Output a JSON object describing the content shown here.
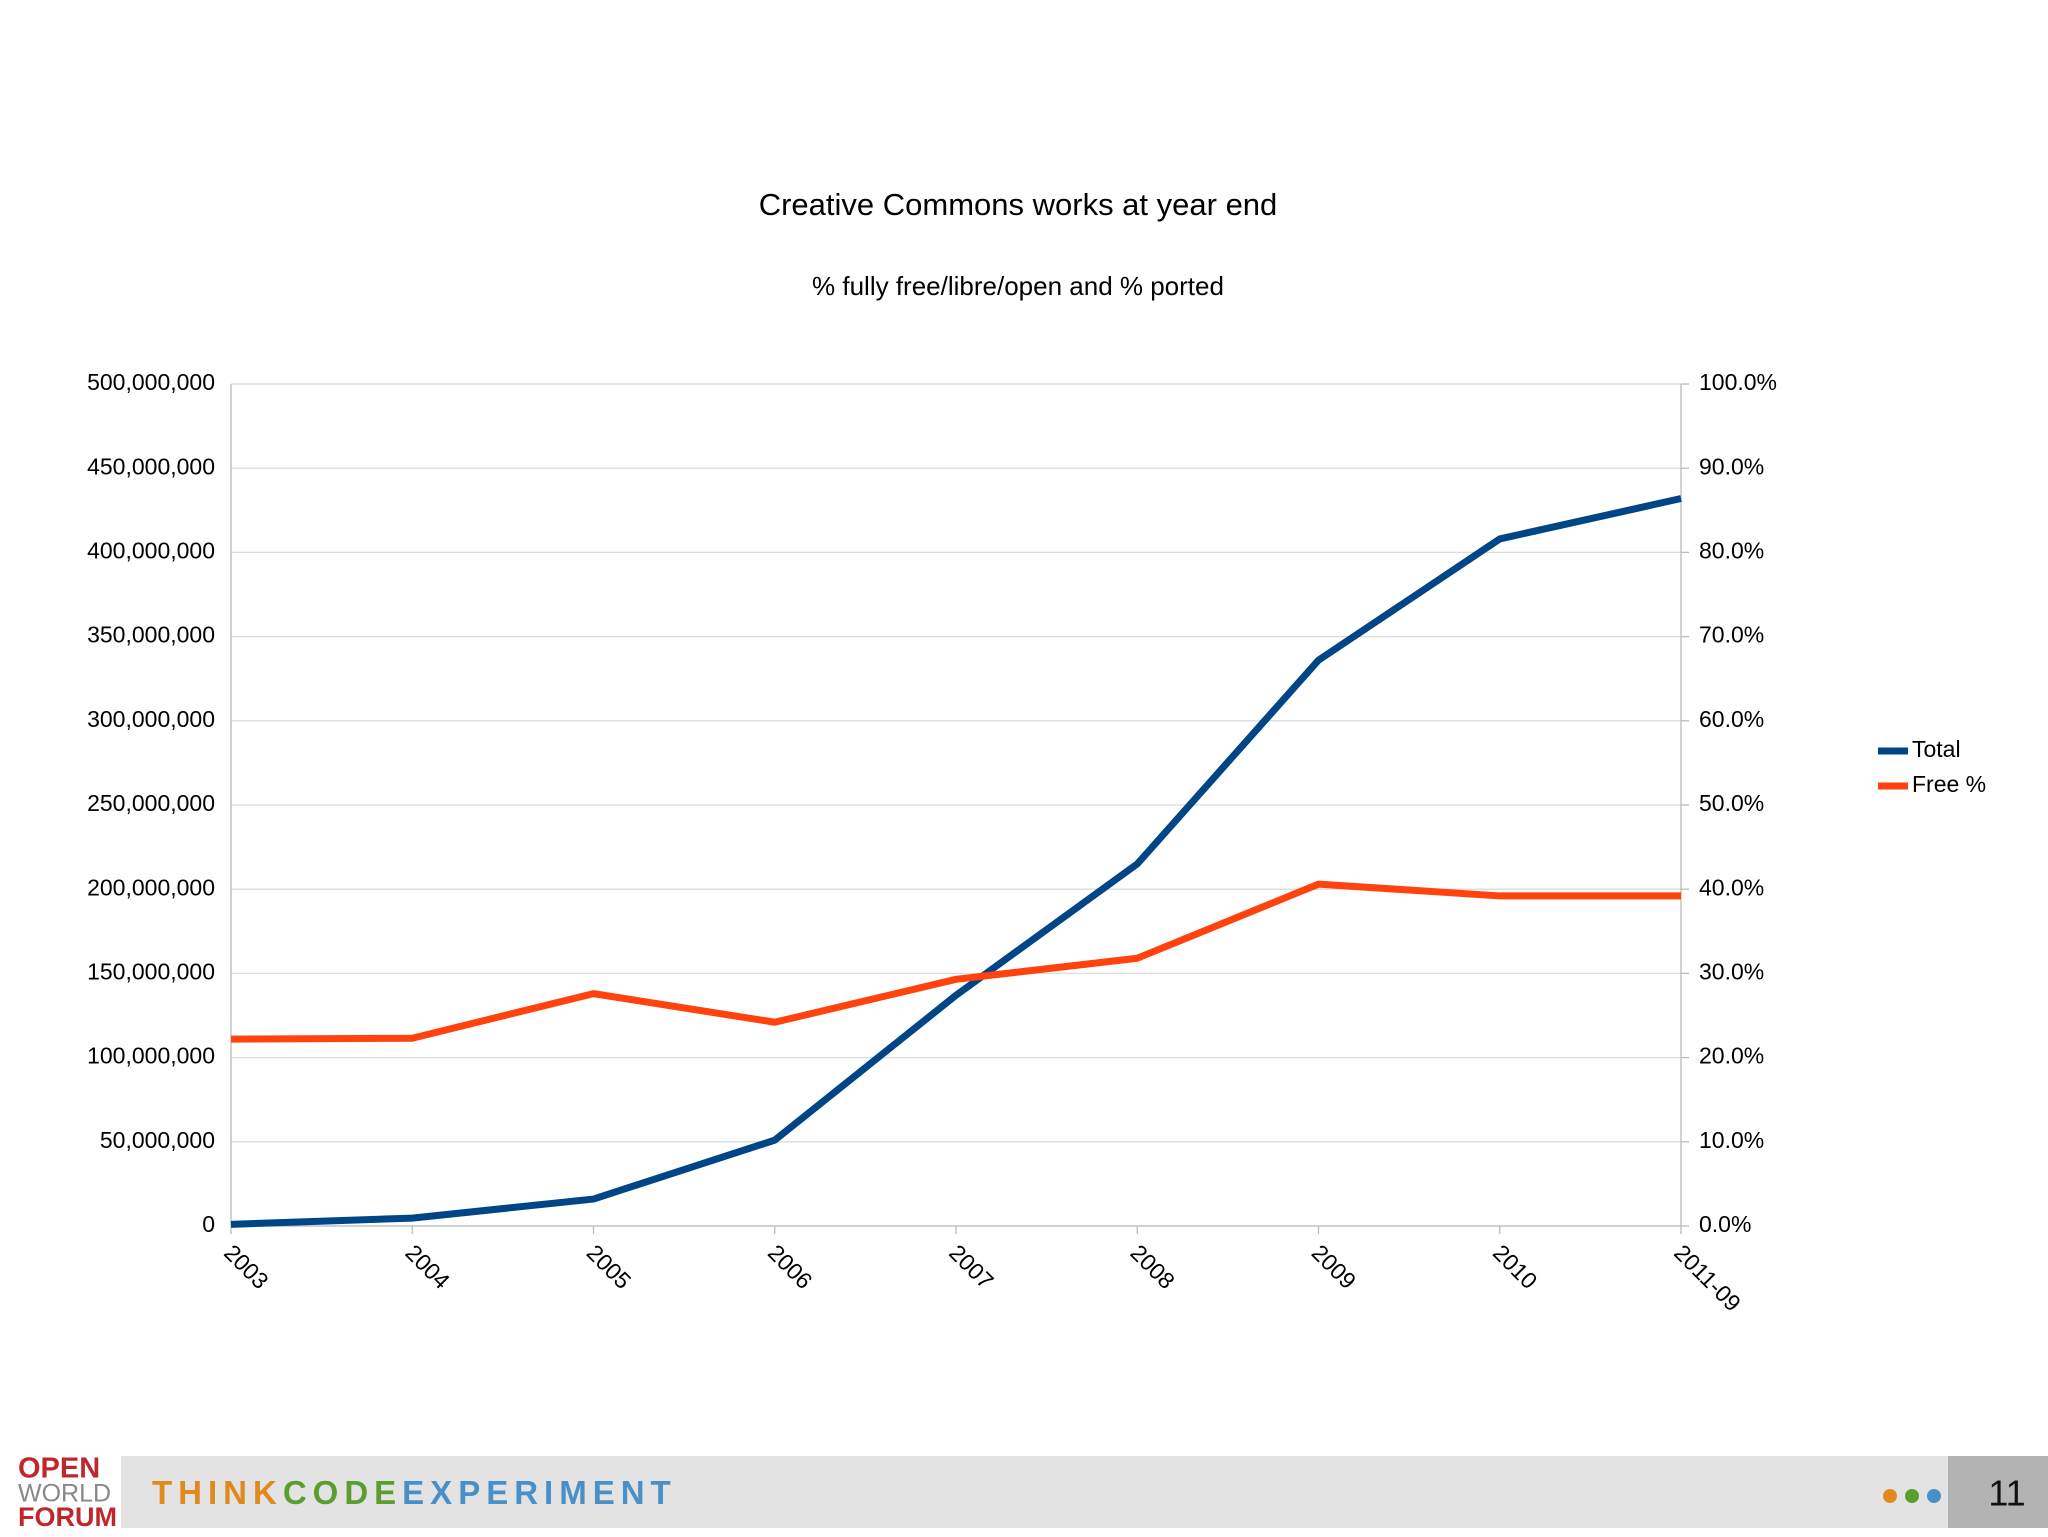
{
  "chart_data": {
    "type": "line",
    "title": "Creative Commons works at year end",
    "subtitle": "% fully free/libre/open and % ported",
    "categories": [
      "2003",
      "2004",
      "2005",
      "2006",
      "2007",
      "2008",
      "2009",
      "2010",
      "2011-09"
    ],
    "series": [
      {
        "name": "Total",
        "color": "#004586",
        "values": [
          1000000,
          4700000,
          16000000,
          51000000,
          137000000,
          215000000,
          336000000,
          408000000,
          432000000
        ]
      },
      {
        "name": "Free %",
        "color": "#ff420e",
        "axis": "y2",
        "values": [
          22.2,
          22.3,
          27.6,
          24.2,
          29.3,
          31.8,
          40.6,
          39.2,
          39.2
        ]
      }
    ],
    "ylim": [
      0,
      500000000
    ],
    "yticks": [
      0,
      {
        "value": 50000000,
        "label": "50,000,000"
      },
      {
        "value": 100000000,
        "label": "100,000,000"
      },
      {
        "value": 150000000,
        "label": "150,000,000"
      },
      {
        "value": 200000000,
        "label": "200,000,000"
      },
      {
        "value": 250000000,
        "label": "250,000,000"
      },
      {
        "value": 300000000,
        "label": "300,000,000"
      },
      {
        "value": 350000000,
        "label": "350,000,000"
      },
      {
        "value": 400000000,
        "label": "400,000,000"
      },
      {
        "value": 450000000,
        "label": "450,000,000"
      },
      {
        "value": 500000000,
        "label": "500,000,000"
      }
    ],
    "y2lim": [
      0,
      100
    ],
    "y2ticks": [
      {
        "value": 0,
        "label": "0.0%"
      },
      {
        "value": 10,
        "label": "10.0%"
      },
      {
        "value": 20,
        "label": "20.0%"
      },
      {
        "value": 30,
        "label": "30.0%"
      },
      {
        "value": 40,
        "label": "40.0%"
      },
      {
        "value": 50,
        "label": "50.0%"
      },
      {
        "value": 60,
        "label": "60.0%"
      },
      {
        "value": 70,
        "label": "70.0%"
      },
      {
        "value": 80,
        "label": "80.0%"
      },
      {
        "value": 90,
        "label": "90.0%"
      },
      {
        "value": 100,
        "label": "100.0%"
      }
    ],
    "grid": true,
    "legend": "right"
  },
  "footer": {
    "logo": [
      "OPEN",
      "WORLD",
      "FORUM"
    ],
    "tagline": [
      "THINK",
      "CODE",
      "EXPERIMENT"
    ],
    "page": "11"
  }
}
